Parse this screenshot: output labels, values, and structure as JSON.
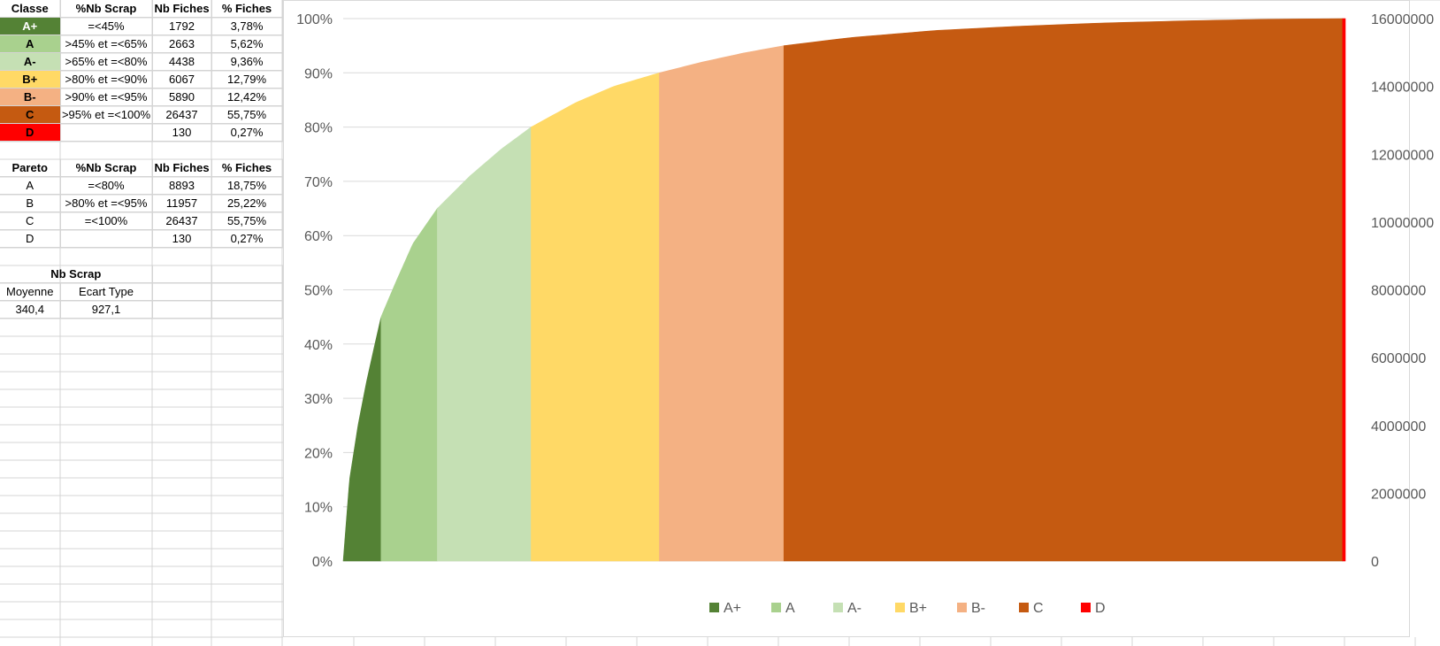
{
  "classe_table": {
    "headers": [
      "Classe",
      "%Nb Scrap",
      "Nb Fiches",
      "% Fiches"
    ],
    "rows": [
      {
        "classe": "A+",
        "pct_scrap": "=<45%",
        "nb_fiches": "1792",
        "pct_fiches": "3,78%",
        "color": "#548235",
        "text_color": "#ffffff"
      },
      {
        "classe": "A",
        "pct_scrap": ">45% et =<65%",
        "nb_fiches": "2663",
        "pct_fiches": "5,62%",
        "color": "#a9d18e",
        "text_color": "#000000"
      },
      {
        "classe": "A-",
        "pct_scrap": ">65% et =<80%",
        "nb_fiches": "4438",
        "pct_fiches": "9,36%",
        "color": "#c5e0b4",
        "text_color": "#000000"
      },
      {
        "classe": "B+",
        "pct_scrap": ">80% et =<90%",
        "nb_fiches": "6067",
        "pct_fiches": "12,79%",
        "color": "#ffd966",
        "text_color": "#000000"
      },
      {
        "classe": "B-",
        "pct_scrap": ">90% et =<95%",
        "nb_fiches": "5890",
        "pct_fiches": "12,42%",
        "color": "#f4b183",
        "text_color": "#000000"
      },
      {
        "classe": "C",
        "pct_scrap": ">95% et =<100%",
        "nb_fiches": "26437",
        "pct_fiches": "55,75%",
        "color": "#c55a11",
        "text_color": "#000000"
      },
      {
        "classe": "D",
        "pct_scrap": "",
        "nb_fiches": "130",
        "pct_fiches": "0,27%",
        "color": "#ff0000",
        "text_color": "#000000"
      }
    ]
  },
  "pareto_table": {
    "headers": [
      "Pareto",
      "%Nb Scrap",
      "Nb Fiches",
      "% Fiches"
    ],
    "rows": [
      {
        "pareto": "A",
        "pct_scrap": "=<80%",
        "nb_fiches": "8893",
        "pct_fiches": "18,75%"
      },
      {
        "pareto": "B",
        "pct_scrap": ">80% et =<95%",
        "nb_fiches": "11957",
        "pct_fiches": "25,22%"
      },
      {
        "pareto": "C",
        "pct_scrap": "=<100%",
        "nb_fiches": "26437",
        "pct_fiches": "55,75%"
      },
      {
        "pareto": "D",
        "pct_scrap": "",
        "nb_fiches": "130",
        "pct_fiches": "0,27%"
      }
    ]
  },
  "stats": {
    "title": "Nb Scrap",
    "labels": [
      "Moyenne",
      "Ecart Type"
    ],
    "values": [
      "340,4",
      "927,1"
    ]
  },
  "chart_data": {
    "type": "area",
    "title": "",
    "xlabel": "",
    "ylabel": "",
    "y_axis_left": {
      "min": 0,
      "max": 1,
      "ticks": [
        "0%",
        "10%",
        "20%",
        "30%",
        "40%",
        "50%",
        "60%",
        "70%",
        "80%",
        "90%",
        "100%"
      ]
    },
    "y_axis_right": {
      "min": 0,
      "max": 16000000,
      "ticks": [
        "0",
        "2000000",
        "4000000",
        "6000000",
        "8000000",
        "10000000",
        "12000000",
        "14000000",
        "16000000"
      ]
    },
    "x_total": 47417,
    "cumulative_curve": {
      "x": [
        0,
        300,
        700,
        1100,
        1500,
        1792,
        2500,
        3300,
        4455,
        6000,
        7500,
        8893,
        11000,
        12800,
        14960,
        17000,
        19000,
        20850,
        24000,
        28000,
        32000,
        36000,
        40000,
        44000,
        47287,
        47417
      ],
      "y": [
        0,
        0.15,
        0.25,
        0.33,
        0.4,
        0.45,
        0.515,
        0.585,
        0.65,
        0.71,
        0.76,
        0.8,
        0.845,
        0.875,
        0.9,
        0.92,
        0.937,
        0.95,
        0.965,
        0.978,
        0.986,
        0.992,
        0.996,
        0.999,
        1.0,
        1.0
      ]
    },
    "series": [
      {
        "name": "A+",
        "nb_fiches": 1792,
        "color": "#548235"
      },
      {
        "name": "A",
        "nb_fiches": 2663,
        "color": "#a9d18e"
      },
      {
        "name": "A-",
        "nb_fiches": 4438,
        "color": "#c5e0b4"
      },
      {
        "name": "B+",
        "nb_fiches": 6067,
        "color": "#ffd966"
      },
      {
        "name": "B-",
        "nb_fiches": 5890,
        "color": "#f4b183"
      },
      {
        "name": "C",
        "nb_fiches": 26437,
        "color": "#c55a11"
      },
      {
        "name": "D",
        "nb_fiches": 130,
        "color": "#ff0000"
      }
    ],
    "grid": true,
    "legend": "bottom"
  }
}
